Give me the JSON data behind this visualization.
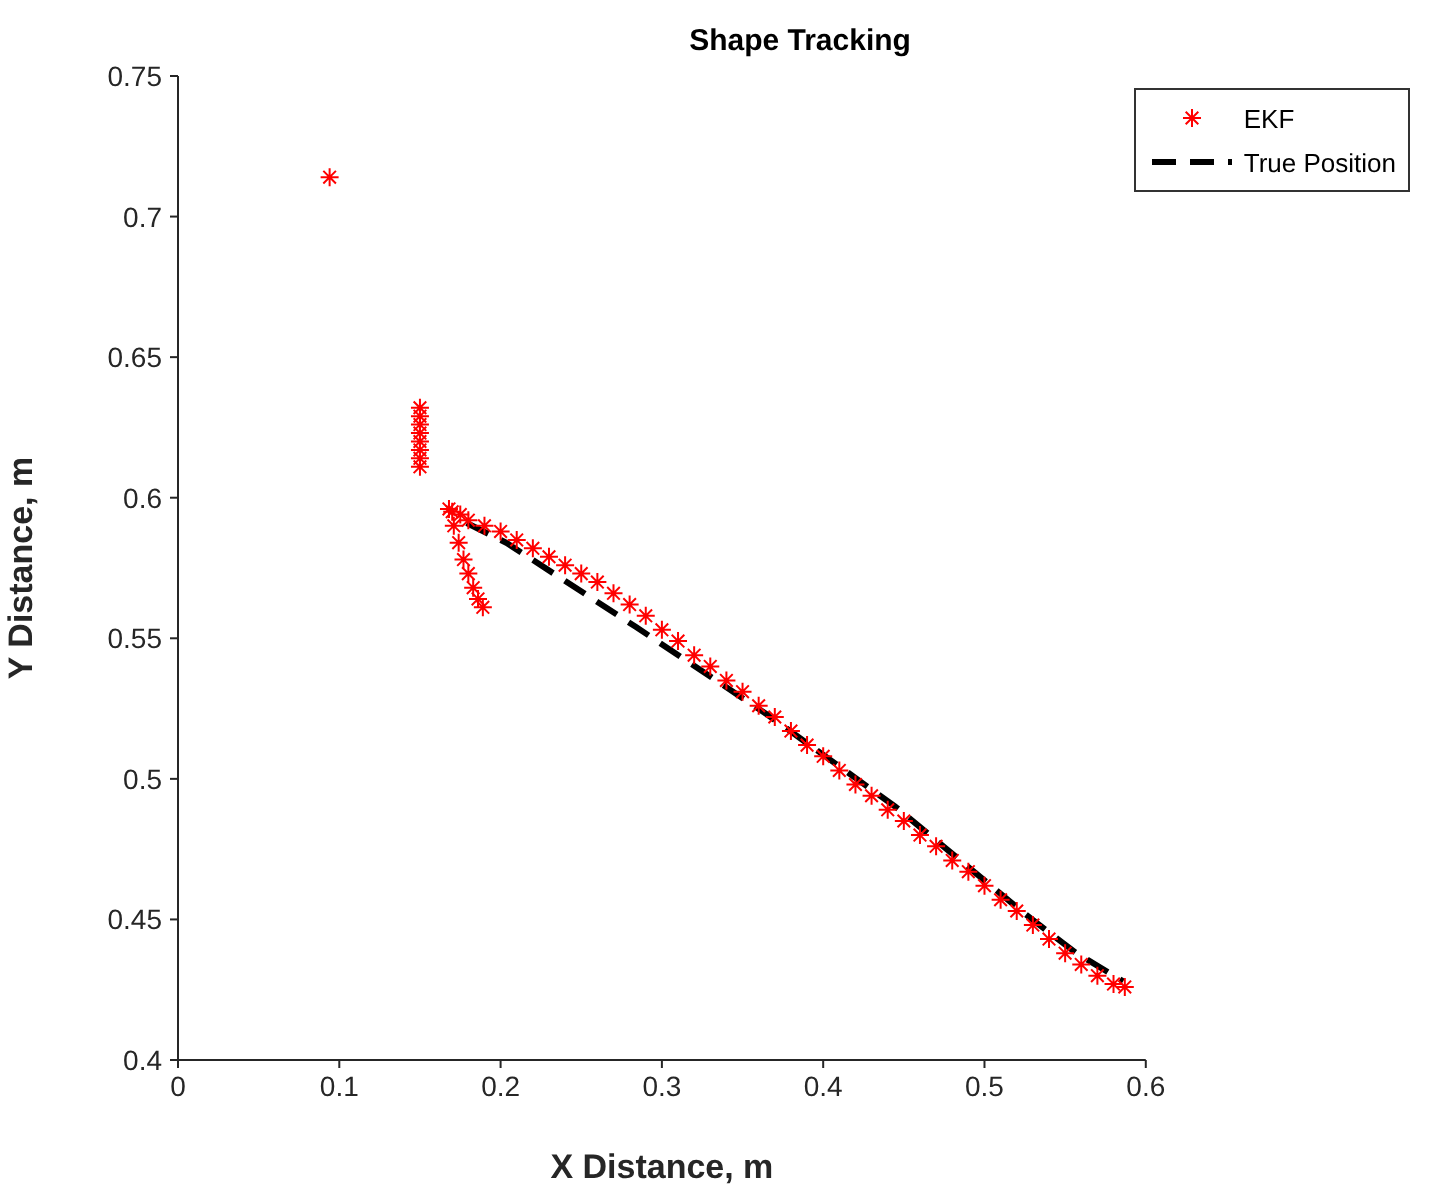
{
  "chart_data": {
    "type": "scatter",
    "title": "Shape Tracking",
    "xlabel": "X Distance, m",
    "ylabel": "Y Distance, m",
    "xlim": [
      0,
      0.6
    ],
    "xticks": [
      0,
      0.1,
      0.2,
      0.3,
      0.4,
      0.5,
      0.6
    ],
    "ylim": [
      0.4,
      0.75
    ],
    "yticks": [
      0.4,
      0.45,
      0.5,
      0.55,
      0.6,
      0.65,
      0.7,
      0.75
    ],
    "grid": false,
    "legend": "top right",
    "series": [
      {
        "name": "EKF",
        "color": "#ff0000",
        "marker": "cross",
        "x": [
          0.094,
          0.15,
          0.15,
          0.15,
          0.15,
          0.15,
          0.15,
          0.15,
          0.15,
          0.168,
          0.171,
          0.174,
          0.177,
          0.18,
          0.183,
          0.186,
          0.189,
          0.17,
          0.175,
          0.18,
          0.19,
          0.2,
          0.21,
          0.22,
          0.23,
          0.24,
          0.25,
          0.26,
          0.27,
          0.28,
          0.29,
          0.3,
          0.31,
          0.32,
          0.33,
          0.34,
          0.35,
          0.36,
          0.37,
          0.38,
          0.39,
          0.4,
          0.41,
          0.42,
          0.43,
          0.44,
          0.45,
          0.46,
          0.47,
          0.48,
          0.49,
          0.5,
          0.51,
          0.52,
          0.53,
          0.54,
          0.55,
          0.56,
          0.57,
          0.58,
          0.587
        ],
        "values": [
          0.714,
          0.611,
          0.614,
          0.617,
          0.62,
          0.623,
          0.626,
          0.629,
          0.632,
          0.596,
          0.59,
          0.584,
          0.578,
          0.573,
          0.568,
          0.564,
          0.561,
          0.595,
          0.594,
          0.592,
          0.59,
          0.588,
          0.585,
          0.582,
          0.579,
          0.576,
          0.573,
          0.57,
          0.566,
          0.562,
          0.558,
          0.553,
          0.549,
          0.544,
          0.54,
          0.535,
          0.531,
          0.526,
          0.522,
          0.517,
          0.512,
          0.508,
          0.503,
          0.498,
          0.494,
          0.489,
          0.485,
          0.48,
          0.476,
          0.471,
          0.467,
          0.462,
          0.457,
          0.453,
          0.448,
          0.443,
          0.438,
          0.434,
          0.43,
          0.427,
          0.426
        ]
      },
      {
        "name": "True Position",
        "type": "line",
        "color": "#000000",
        "marker": "none",
        "line_style": "dashed",
        "x": [
          0.179,
          0.2035,
          0.284,
          0.365,
          0.445,
          0.525,
          0.557,
          0.586
        ],
        "values": [
          0.591,
          0.584,
          0.554,
          0.523,
          0.49,
          0.452,
          0.438,
          0.428
        ]
      }
    ]
  }
}
